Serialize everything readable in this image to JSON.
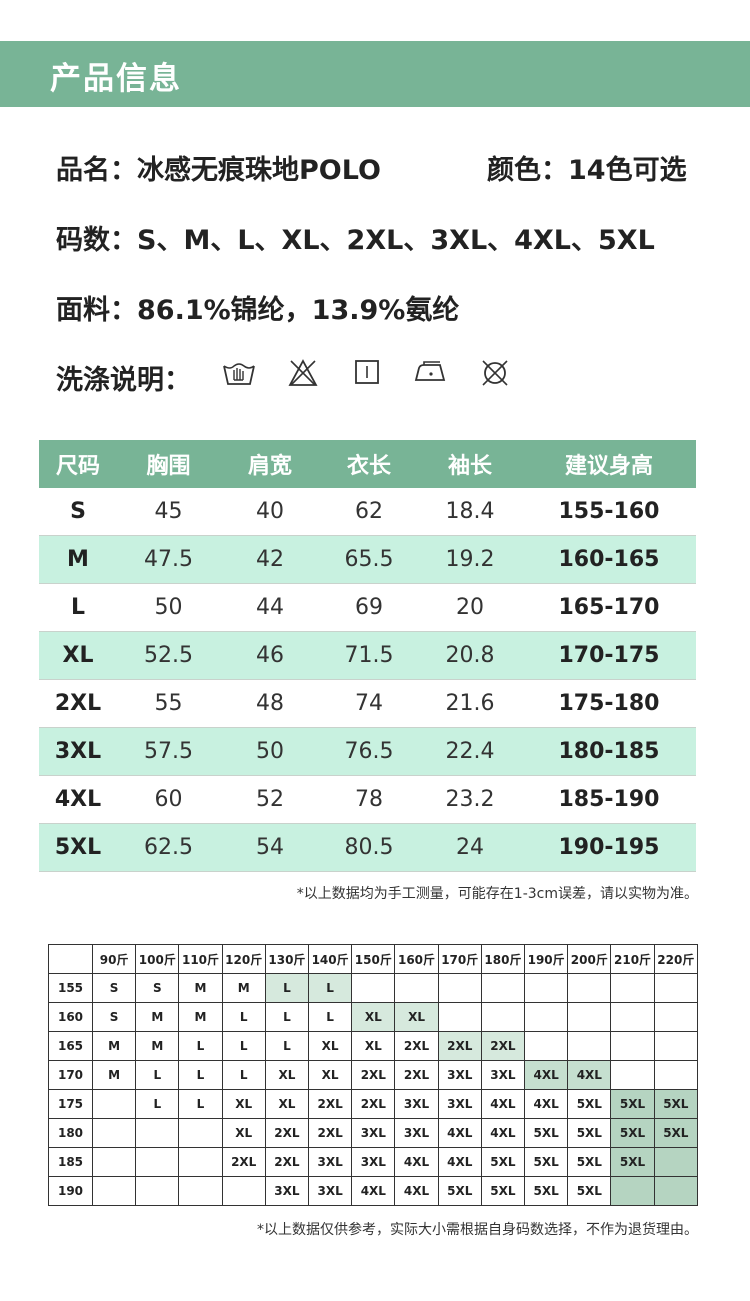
{
  "header": {
    "title": "产品信息"
  },
  "info": {
    "name": "品名：冰感无痕珠地POLO",
    "color": "颜色：14色可选",
    "sizes": "码数：S、M、L、XL、2XL、3XL、4XL、5XL",
    "fabric": "面料：86.1%锦纶，13.9%氨纶",
    "care_label": "洗涤说明："
  },
  "care_icons": [
    "hand-wash-icon",
    "no-bleach-icon",
    "tumble-dry-icon",
    "low-iron-icon",
    "no-dry-clean-icon"
  ],
  "size_table": {
    "headers": [
      "尺码",
      "胸围",
      "肩宽",
      "衣长",
      "袖长",
      "建议身高"
    ],
    "rows": [
      [
        "S",
        "45",
        "40",
        "62",
        "18.4",
        "155-160"
      ],
      [
        "M",
        "47.5",
        "42",
        "65.5",
        "19.2",
        "160-165"
      ],
      [
        "L",
        "50",
        "44",
        "69",
        "20",
        "165-170"
      ],
      [
        "XL",
        "52.5",
        "46",
        "71.5",
        "20.8",
        "170-175"
      ],
      [
        "2XL",
        "55",
        "48",
        "74",
        "21.6",
        "175-180"
      ],
      [
        "3XL",
        "57.5",
        "50",
        "76.5",
        "22.4",
        "180-185"
      ],
      [
        "4XL",
        "60",
        "52",
        "78",
        "23.2",
        "185-190"
      ],
      [
        "5XL",
        "62.5",
        "54",
        "80.5",
        "24",
        "190-195"
      ]
    ],
    "note": "*以上数据均为手工测量，可能存在1-3cm误差，请以实物为准。"
  },
  "weight_grid": {
    "weights": [
      "90斤",
      "100斤",
      "110斤",
      "120斤",
      "130斤",
      "140斤",
      "150斤",
      "160斤",
      "170斤",
      "180斤",
      "190斤",
      "200斤",
      "210斤",
      "220斤"
    ],
    "rows": [
      {
        "height": "155",
        "cells": [
          "S",
          "S",
          "M",
          "M",
          "L",
          "L",
          "",
          "",
          "",
          "",
          "",
          "",
          "",
          ""
        ]
      },
      {
        "height": "160",
        "cells": [
          "S",
          "M",
          "M",
          "L",
          "L",
          "L",
          "XL",
          "XL",
          "",
          "",
          "",
          "",
          "",
          ""
        ]
      },
      {
        "height": "165",
        "cells": [
          "M",
          "M",
          "L",
          "L",
          "L",
          "XL",
          "XL",
          "2XL",
          "2XL",
          "2XL",
          "",
          "",
          "",
          ""
        ]
      },
      {
        "height": "170",
        "cells": [
          "M",
          "L",
          "L",
          "L",
          "XL",
          "XL",
          "2XL",
          "2XL",
          "3XL",
          "3XL",
          "4XL",
          "4XL",
          "",
          ""
        ]
      },
      {
        "height": "175",
        "cells": [
          "",
          "L",
          "L",
          "XL",
          "XL",
          "2XL",
          "2XL",
          "3XL",
          "3XL",
          "4XL",
          "4XL",
          "5XL",
          "5XL",
          "5XL"
        ]
      },
      {
        "height": "180",
        "cells": [
          "",
          "",
          "",
          "XL",
          "2XL",
          "2XL",
          "3XL",
          "3XL",
          "4XL",
          "4XL",
          "5XL",
          "5XL",
          "5XL",
          "5XL"
        ]
      },
      {
        "height": "185",
        "cells": [
          "",
          "",
          "",
          "2XL",
          "2XL",
          "3XL",
          "3XL",
          "4XL",
          "4XL",
          "5XL",
          "5XL",
          "5XL",
          "5XL",
          ""
        ]
      },
      {
        "height": "190",
        "cells": [
          "",
          "",
          "",
          "",
          "3XL",
          "3XL",
          "4XL",
          "4XL",
          "5XL",
          "5XL",
          "5XL",
          "5XL",
          "",
          ""
        ]
      }
    ],
    "note": "*以上数据仅供参考，实际大小需根据自身码数选择，不作为退货理由。"
  },
  "colors": {
    "header_green": "#78b496",
    "row_mint": "#c8f1e0"
  }
}
